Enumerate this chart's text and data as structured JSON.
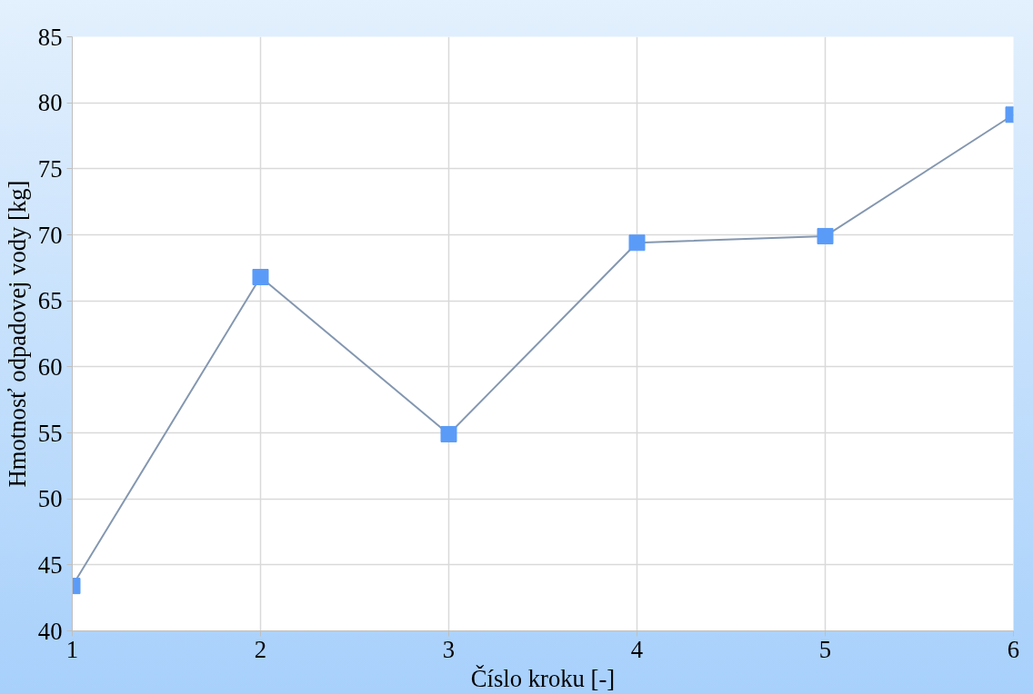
{
  "chart_data": {
    "type": "line",
    "xlabel": "Číslo kroku [-]",
    "ylabel": "Hmotnosť odpadovej vody [kg]",
    "x": [
      1,
      2,
      3,
      4,
      5,
      6
    ],
    "series": [
      {
        "color": "#5b9bf8",
        "values": [
          43.4,
          66.8,
          54.9,
          69.4,
          69.9,
          79.1
        ]
      }
    ],
    "marker": "square",
    "line_style": "solid",
    "xlim": [
      1,
      6
    ],
    "xticks": [
      1,
      2,
      3,
      4,
      5,
      6
    ],
    "ylim": [
      40,
      85
    ],
    "yticks": [
      40,
      45,
      50,
      55,
      60,
      65,
      70,
      75,
      80,
      85
    ],
    "grid": true
  }
}
